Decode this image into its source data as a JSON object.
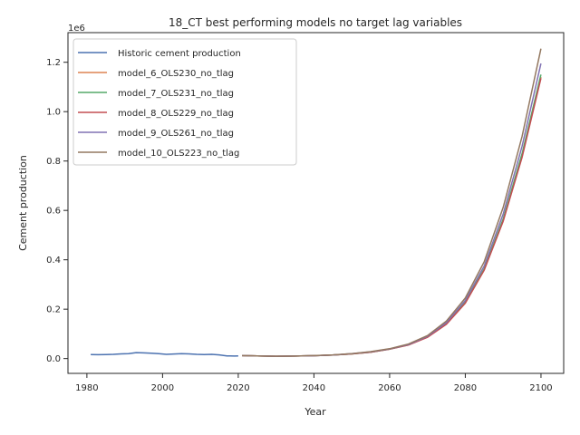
{
  "chart_data": {
    "type": "line",
    "title": "18_CT best performing models no target lag variables",
    "xlabel": "Year",
    "ylabel": "Cement production",
    "y_offset_text": "1e6",
    "xlim": [
      1975,
      2106
    ],
    "ylim": [
      -60000,
      1320000
    ],
    "xticks": [
      1980,
      2000,
      2020,
      2040,
      2060,
      2080,
      2100
    ],
    "yticks": [
      0,
      200000,
      400000,
      600000,
      800000,
      1000000,
      1200000
    ],
    "ytick_labels": [
      "0.0",
      "0.2",
      "0.4",
      "0.6",
      "0.8",
      "1.0",
      "1.2"
    ],
    "legend_position": "upper-left",
    "grid": false,
    "series": [
      {
        "name": "Historic cement production",
        "color": "#4c72b0",
        "x": [
          1981,
          1983,
          1985,
          1987,
          1989,
          1991,
          1993,
          1995,
          1997,
          1999,
          2001,
          2003,
          2005,
          2007,
          2009,
          2011,
          2013,
          2015,
          2017,
          2019,
          2020
        ],
        "y": [
          16000,
          15500,
          16500,
          17000,
          19000,
          19500,
          24000,
          23000,
          22000,
          20000,
          17000,
          18500,
          20000,
          19000,
          17000,
          16000,
          17000,
          15000,
          11000,
          10000,
          10500
        ]
      },
      {
        "name": "model_6_OLS230_no_tlag",
        "color": "#dd8452",
        "x": [
          2021,
          2025,
          2030,
          2035,
          2040,
          2045,
          2050,
          2055,
          2060,
          2065,
          2070,
          2075,
          2080,
          2085,
          2090,
          2095,
          2100
        ],
        "y": [
          12000,
          10500,
          9500,
          10000,
          11500,
          14000,
          19000,
          26000,
          38000,
          55000,
          87000,
          140000,
          225000,
          360000,
          560000,
          820000,
          1140000
        ]
      },
      {
        "name": "model_7_OLS231_no_tlag",
        "color": "#55a868",
        "x": [
          2021,
          2025,
          2030,
          2035,
          2040,
          2045,
          2050,
          2055,
          2060,
          2065,
          2070,
          2075,
          2080,
          2085,
          2090,
          2095,
          2100
        ],
        "y": [
          12000,
          10500,
          9500,
          10000,
          11500,
          14000,
          19000,
          26000,
          38000,
          56000,
          88000,
          142000,
          228000,
          363000,
          565000,
          830000,
          1150000
        ]
      },
      {
        "name": "model_8_OLS229_no_tlag",
        "color": "#c44e52",
        "x": [
          2021,
          2025,
          2030,
          2035,
          2040,
          2045,
          2050,
          2055,
          2060,
          2065,
          2070,
          2075,
          2080,
          2085,
          2090,
          2095,
          2100
        ],
        "y": [
          12000,
          10500,
          9500,
          10000,
          11500,
          14000,
          19000,
          26000,
          38000,
          55000,
          86000,
          139000,
          224000,
          358000,
          556000,
          815000,
          1135000
        ]
      },
      {
        "name": "model_9_OLS261_no_tlag",
        "color": "#8172b3",
        "x": [
          2021,
          2025,
          2030,
          2035,
          2040,
          2045,
          2050,
          2055,
          2060,
          2065,
          2070,
          2075,
          2080,
          2085,
          2090,
          2095,
          2100
        ],
        "y": [
          12000,
          10500,
          9500,
          10000,
          11500,
          14500,
          19500,
          27000,
          39000,
          57000,
          90000,
          146000,
          235000,
          375000,
          585000,
          860000,
          1195000
        ]
      },
      {
        "name": "model_10_OLS223_no_tlag",
        "color": "#937860",
        "x": [
          2021,
          2025,
          2030,
          2035,
          2040,
          2045,
          2050,
          2055,
          2060,
          2065,
          2070,
          2075,
          2080,
          2085,
          2090,
          2095,
          2100
        ],
        "y": [
          12000,
          10500,
          9500,
          10000,
          12000,
          15000,
          20000,
          28000,
          40000,
          59000,
          93000,
          152000,
          245000,
          392000,
          612000,
          900000,
          1255000
        ]
      }
    ]
  }
}
